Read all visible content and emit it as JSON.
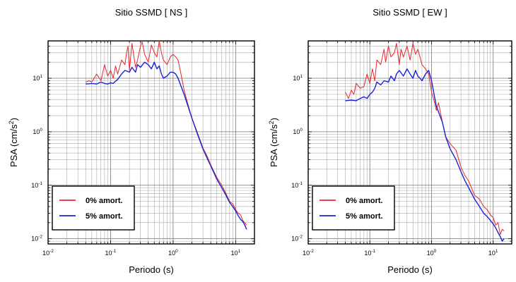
{
  "chart_data": [
    {
      "type": "line",
      "title": "Sitio SSMD [ NS ]",
      "xlabel": "Periodo (s)",
      "ylabel_main": "PSA (cm/s",
      "ylabel_sup": "2",
      "ylabel_tail": ")",
      "xscale": "log",
      "yscale": "log",
      "xlim": [
        0.01,
        20
      ],
      "ylim": [
        0.008,
        50
      ],
      "grid": true,
      "legend_position": "bottom-left",
      "xticks": [
        {
          "b": "10",
          "e": "-2"
        },
        {
          "b": "10",
          "e": "-1"
        },
        {
          "b": "10",
          "e": "0"
        },
        {
          "b": "10",
          "e": "1"
        }
      ],
      "yticks": [
        {
          "b": "10",
          "e": "-2"
        },
        {
          "b": "10",
          "e": "-1"
        },
        {
          "b": "10",
          "e": "0"
        },
        {
          "b": "10",
          "e": "1"
        }
      ],
      "series": [
        {
          "name": "0% amort.",
          "color": "#e8252b",
          "x": [
            0.04,
            0.045,
            0.05,
            0.06,
            0.07,
            0.08,
            0.09,
            0.1,
            0.11,
            0.12,
            0.13,
            0.15,
            0.17,
            0.18,
            0.19,
            0.2,
            0.22,
            0.25,
            0.27,
            0.3,
            0.32,
            0.35,
            0.4,
            0.45,
            0.5,
            0.55,
            0.6,
            0.65,
            0.7,
            0.8,
            0.9,
            1.0,
            1.1,
            1.2,
            1.3,
            1.5,
            1.7,
            2.0,
            2.5,
            3.0,
            3.5,
            4.0,
            5.0,
            6.0,
            7.0,
            8.0,
            9.0,
            10,
            11,
            12,
            13,
            14,
            15
          ],
          "y": [
            8.5,
            9,
            8.5,
            12,
            9,
            18,
            11,
            14,
            10,
            17,
            12,
            22,
            18,
            30,
            40,
            14,
            45,
            16,
            22,
            40,
            48,
            28,
            20,
            42,
            30,
            25,
            50,
            30,
            22,
            18,
            25,
            28,
            25,
            22,
            14,
            6,
            3.5,
            1.8,
            0.9,
            0.5,
            0.35,
            0.24,
            0.14,
            0.1,
            0.07,
            0.05,
            0.045,
            0.035,
            0.03,
            0.028,
            0.022,
            0.02,
            0.018
          ]
        },
        {
          "name": "5% amort.",
          "color": "#1a22d6",
          "x": [
            0.04,
            0.05,
            0.06,
            0.07,
            0.08,
            0.09,
            0.1,
            0.11,
            0.12,
            0.13,
            0.15,
            0.17,
            0.2,
            0.22,
            0.25,
            0.27,
            0.3,
            0.35,
            0.4,
            0.45,
            0.5,
            0.55,
            0.6,
            0.65,
            0.7,
            0.8,
            0.9,
            1.0,
            1.1,
            1.2,
            1.5,
            1.7,
            2.0,
            2.5,
            3.0,
            3.5,
            4.0,
            5.0,
            6.0,
            7.0,
            8.0,
            9.0,
            10,
            11,
            12,
            13,
            14,
            15
          ],
          "y": [
            7.8,
            8,
            7.8,
            8.5,
            8,
            7.8,
            8.2,
            8,
            8.8,
            9.5,
            12,
            14,
            13,
            16,
            13,
            18,
            16,
            20,
            18,
            15,
            20,
            15,
            17,
            12,
            10,
            11,
            13,
            13,
            12,
            10,
            5,
            3.2,
            1.8,
            0.85,
            0.48,
            0.32,
            0.23,
            0.13,
            0.09,
            0.065,
            0.048,
            0.04,
            0.033,
            0.027,
            0.023,
            0.021,
            0.018,
            0.015
          ]
        }
      ]
    },
    {
      "type": "line",
      "title": "Sitio SSMD [ EW ]",
      "xlabel": "Periodo (s)",
      "ylabel_main": "PSA (cm/s",
      "ylabel_sup": "2",
      "ylabel_tail": ")",
      "xscale": "log",
      "yscale": "log",
      "xlim": [
        0.01,
        20
      ],
      "ylim": [
        0.008,
        50
      ],
      "grid": true,
      "legend_position": "bottom-left",
      "xticks": [
        {
          "b": "10",
          "e": "-2"
        },
        {
          "b": "10",
          "e": "-1"
        },
        {
          "b": "10",
          "e": "0"
        },
        {
          "b": "10",
          "e": "1"
        }
      ],
      "yticks": [
        {
          "b": "10",
          "e": "-2"
        },
        {
          "b": "10",
          "e": "-1"
        },
        {
          "b": "10",
          "e": "0"
        },
        {
          "b": "10",
          "e": "1"
        }
      ],
      "series": [
        {
          "name": "0% amort.",
          "color": "#e8252b",
          "x": [
            0.04,
            0.045,
            0.05,
            0.055,
            0.06,
            0.07,
            0.08,
            0.09,
            0.1,
            0.11,
            0.12,
            0.13,
            0.15,
            0.17,
            0.18,
            0.2,
            0.22,
            0.25,
            0.27,
            0.3,
            0.32,
            0.35,
            0.4,
            0.45,
            0.5,
            0.55,
            0.6,
            0.65,
            0.7,
            0.8,
            0.9,
            1.0,
            1.1,
            1.2,
            1.3,
            1.5,
            1.7,
            2.0,
            2.5,
            3.0,
            3.5,
            4.0,
            5.0,
            6.0,
            7.0,
            8.0,
            9.0,
            10,
            11,
            12,
            13,
            14,
            15
          ],
          "y": [
            5.5,
            4.2,
            6,
            5,
            8,
            6.5,
            7,
            12,
            8,
            15,
            9,
            22,
            18,
            35,
            20,
            40,
            25,
            30,
            45,
            18,
            35,
            25,
            40,
            22,
            45,
            28,
            35,
            25,
            18,
            15,
            12,
            5.5,
            3.8,
            2.5,
            3.5,
            1.5,
            0.8,
            0.6,
            0.45,
            0.22,
            0.15,
            0.12,
            0.065,
            0.055,
            0.04,
            0.035,
            0.028,
            0.025,
            0.018,
            0.02,
            0.012,
            0.015,
            0.014
          ]
        },
        {
          "name": "5% amort.",
          "color": "#1a22d6",
          "x": [
            0.04,
            0.05,
            0.06,
            0.07,
            0.08,
            0.09,
            0.1,
            0.11,
            0.12,
            0.13,
            0.15,
            0.17,
            0.2,
            0.22,
            0.25,
            0.27,
            0.3,
            0.35,
            0.4,
            0.45,
            0.5,
            0.55,
            0.6,
            0.65,
            0.7,
            0.8,
            0.9,
            1.0,
            1.1,
            1.2,
            1.5,
            1.7,
            2.0,
            2.5,
            3.0,
            3.5,
            4.0,
            5.0,
            6.0,
            7.0,
            8.0,
            9.0,
            10,
            11,
            12,
            13,
            14,
            15
          ],
          "y": [
            3.8,
            3.9,
            3.8,
            4.2,
            4.5,
            4.2,
            5,
            5.5,
            6.5,
            8.5,
            7.5,
            9,
            8.5,
            11,
            9,
            12,
            14,
            11,
            15,
            12,
            10,
            14,
            11,
            10,
            9,
            12,
            14,
            9,
            5,
            3,
            1.5,
            0.8,
            0.48,
            0.3,
            0.18,
            0.12,
            0.09,
            0.055,
            0.04,
            0.03,
            0.026,
            0.022,
            0.019,
            0.016,
            0.013,
            0.011,
            0.009,
            0.01
          ]
        }
      ]
    }
  ]
}
